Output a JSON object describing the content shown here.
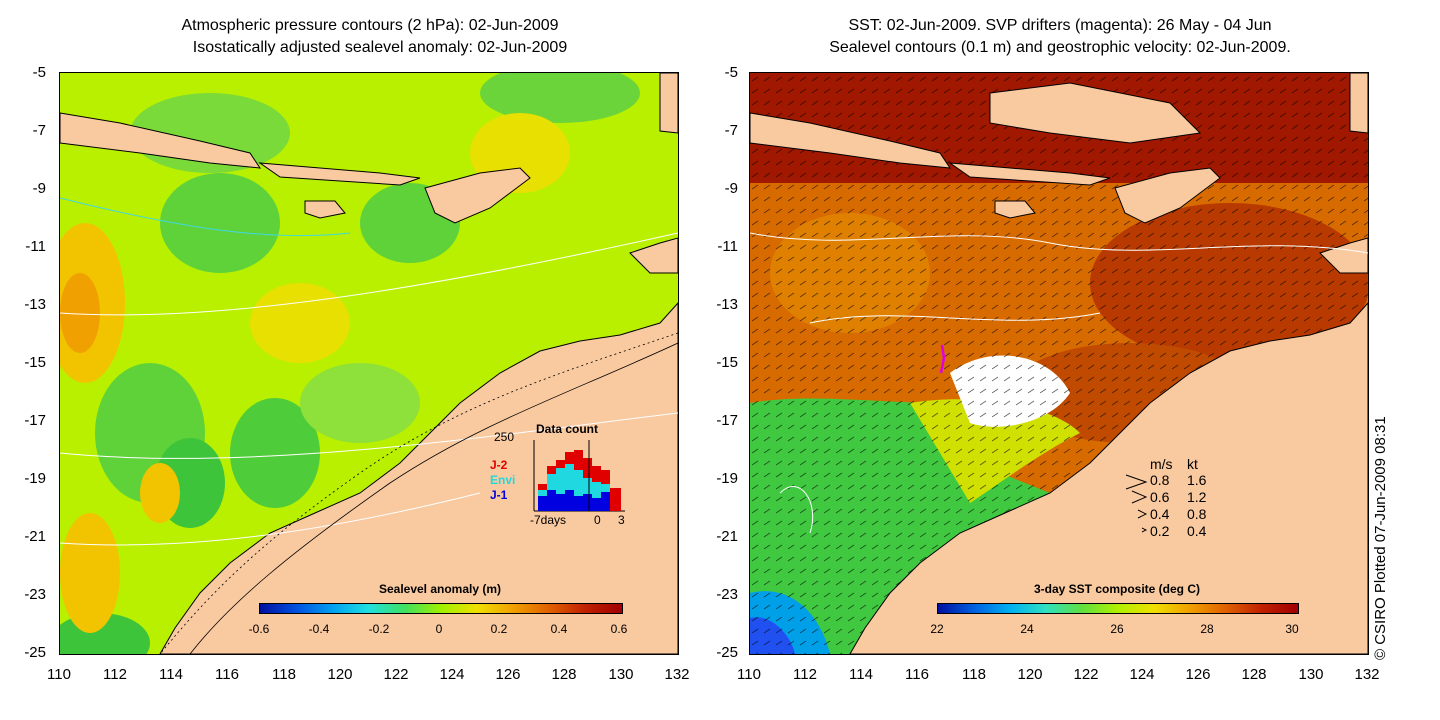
{
  "left_panel": {
    "title_line1": "Atmospheric pressure contours (2 hPa): 02-Jun-2009",
    "title_line2": "Isostatically adjusted sealevel anomaly: 02-Jun-2009",
    "colorbar_title": "Sealevel anomaly (m)",
    "colorbar_ticks": [
      "-0.6",
      "-0.4",
      "-0.2",
      "0",
      "0.2",
      "0.4",
      "0.6"
    ],
    "inset": {
      "y_max_label": "250",
      "title": "Data count",
      "legend": [
        "J-2",
        "Envi",
        "J-1"
      ],
      "x_labels": [
        "-7days",
        "0",
        "3"
      ]
    }
  },
  "right_panel": {
    "title_line1": "SST: 02-Jun-2009. SVP drifters (magenta): 26 May - 04 Jun",
    "title_line2": "Sealevel contours (0.1 m) and geostrophic velocity: 02-Jun-2009.",
    "colorbar_title": "3-day SST composite (deg C)",
    "colorbar_ticks": [
      "22",
      "24",
      "26",
      "28",
      "30"
    ],
    "velocity_key": {
      "header_ms": "m/s",
      "header_kt": "kt",
      "rows": [
        {
          "ms": "0.8",
          "kt": "1.6"
        },
        {
          "ms": "0.6",
          "kt": "1.2"
        },
        {
          "ms": "0.4",
          "kt": "0.8"
        },
        {
          "ms": "0.2",
          "kt": "0.4"
        }
      ]
    }
  },
  "axes": {
    "y_labels": [
      "-5",
      "-7",
      "-9",
      "-11",
      "-13",
      "-15",
      "-17",
      "-19",
      "-21",
      "-23",
      "-25"
    ],
    "x_labels": [
      "110",
      "112",
      "114",
      "116",
      "118",
      "120",
      "122",
      "124",
      "126",
      "128",
      "130",
      "132"
    ]
  },
  "credit": "© CSIRO Plotted 07-Jun-2009 08:31",
  "colors": {
    "land": "#f9c9a0",
    "sla_base": "#b8f000",
    "sst_warm": "#d86b00",
    "sst_hot": "#a01800",
    "magenta": "#e000e0"
  }
}
